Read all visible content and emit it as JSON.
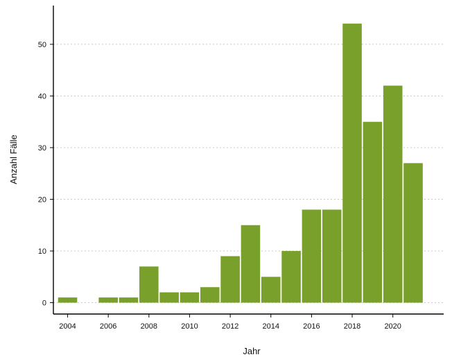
{
  "chart_data": {
    "type": "bar",
    "title": "",
    "xlabel": "Jahr",
    "ylabel": "Anzahl Fälle",
    "x": [
      2004,
      2006,
      2007,
      2008,
      2009,
      2010,
      2011,
      2012,
      2013,
      2014,
      2015,
      2016,
      2017,
      2018,
      2019,
      2020,
      2021
    ],
    "values": [
      1,
      1,
      1,
      7,
      2,
      2,
      3,
      9,
      15,
      5,
      10,
      18,
      18,
      54,
      35,
      42,
      27
    ],
    "xlim": [
      2003.3,
      2022.5
    ],
    "ylim": [
      -2.2,
      57.5
    ],
    "xticks": [
      2004,
      2006,
      2008,
      2010,
      2012,
      2014,
      2016,
      2018,
      2020
    ],
    "xtick_labels": [
      "2004",
      "2006",
      "2008",
      "2010",
      "2012",
      "2014",
      "2016",
      "2018",
      "2020"
    ],
    "yticks": [
      0,
      10,
      20,
      30,
      40,
      50
    ],
    "ytick_labels": [
      "0",
      "10",
      "20",
      "30",
      "40",
      "50"
    ],
    "grid": "horizontal-dotted",
    "legend": "none",
    "bar_color": "#78a02a"
  }
}
